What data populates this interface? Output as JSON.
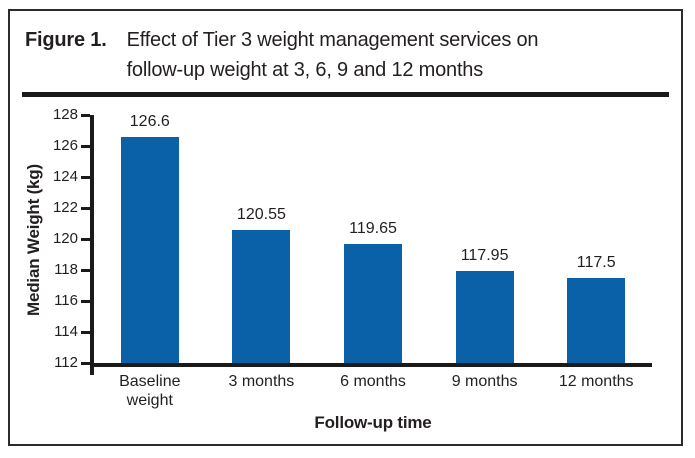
{
  "figure": {
    "label": "Figure 1.",
    "title_line1": "Effect of Tier 3 weight management services on",
    "title_line2": "follow-up weight at 3, 6, 9 and 12 months"
  },
  "chart_data": {
    "type": "bar",
    "categories": [
      "Baseline weight",
      "3 months",
      "6 months",
      "9 months",
      "12 months"
    ],
    "values": [
      126.6,
      120.55,
      119.65,
      117.95,
      117.5
    ],
    "value_labels": [
      "126.6",
      "120.55",
      "119.65",
      "117.95",
      "117.5"
    ],
    "title": "Figure 1. Effect of Tier 3 weight management services on follow-up weight at 3, 6, 9 and 12 months",
    "xlabel": "Follow-up time",
    "ylabel": "Median Weight (kg)",
    "ylim": [
      112,
      128
    ],
    "ytick_step": 2,
    "grid": false,
    "legend": false,
    "bar_color": "#0b61a8",
    "axis_color": "#1a1a1a",
    "text_color": "#231f20"
  }
}
